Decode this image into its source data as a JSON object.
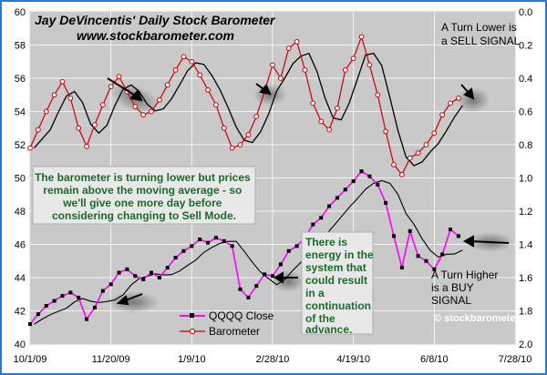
{
  "chart_data": {
    "type": "line",
    "title": "Jay DeVincentis' Daily Stock Barometer",
    "subtitle": "www.stockbarometer.com",
    "watermark": "© stockbarometer.com",
    "x_labels": [
      "10/1/09",
      "11/20/09",
      "1/9/10",
      "2/28/10",
      "4/19/10",
      "6/8/10",
      "7/28/10"
    ],
    "left_axis": {
      "ylim": [
        40,
        60
      ],
      "ticks": [
        "40",
        "42",
        "44",
        "46",
        "48",
        "50",
        "52",
        "54",
        "56",
        "58",
        "60"
      ]
    },
    "right_axis": {
      "ylim": [
        2.0,
        0.0
      ],
      "ticks": [
        "2.0",
        "1.8",
        "1.6",
        "1.4",
        "1.2",
        "1.0",
        "0.8",
        "0.6",
        "0.4",
        "0.2",
        "0.0"
      ]
    },
    "series": [
      {
        "name": "QQQQ Close",
        "color": "#ff00ff",
        "axis": "left",
        "values": [
          [
            0,
            41.2
          ],
          [
            2,
            41.8
          ],
          [
            4,
            42.3
          ],
          [
            6,
            42.6
          ],
          [
            8,
            42.9
          ],
          [
            10,
            43.1
          ],
          [
            12,
            42.8
          ],
          [
            14,
            41.5
          ],
          [
            16,
            42.2
          ],
          [
            18,
            43.2
          ],
          [
            20,
            43.6
          ],
          [
            22,
            44.3
          ],
          [
            24,
            44.5
          ],
          [
            26,
            44.1
          ],
          [
            28,
            43.9
          ],
          [
            30,
            44.3
          ],
          [
            32,
            44.0
          ],
          [
            34,
            44.6
          ],
          [
            36,
            45.2
          ],
          [
            38,
            45.6
          ],
          [
            40,
            45.9
          ],
          [
            42,
            46.3
          ],
          [
            44,
            46.1
          ],
          [
            46,
            46.4
          ],
          [
            48,
            46.2
          ],
          [
            50,
            45.9
          ],
          [
            52,
            43.3
          ],
          [
            54,
            42.8
          ],
          [
            56,
            43.5
          ],
          [
            58,
            44.2
          ],
          [
            60,
            44.1
          ],
          [
            62,
            44.8
          ],
          [
            64,
            45.6
          ],
          [
            66,
            45.9
          ],
          [
            68,
            46.4
          ],
          [
            70,
            47.2
          ],
          [
            72,
            47.6
          ],
          [
            74,
            48.3
          ],
          [
            76,
            48.8
          ],
          [
            78,
            49.3
          ],
          [
            80,
            49.8
          ],
          [
            82,
            50.4
          ],
          [
            84,
            50.1
          ],
          [
            86,
            49.6
          ],
          [
            88,
            48.5
          ],
          [
            90,
            46.5
          ],
          [
            92,
            44.6
          ],
          [
            94,
            46.8
          ],
          [
            96,
            45.3
          ],
          [
            98,
            45.0
          ],
          [
            100,
            44.5
          ],
          [
            102,
            45.4
          ],
          [
            104,
            46.9
          ],
          [
            106,
            46.5
          ]
        ]
      },
      {
        "name": "Barometer",
        "color": "#cc0000",
        "axis": "right",
        "values": [
          [
            0,
            0.82
          ],
          [
            2,
            0.71
          ],
          [
            4,
            0.6
          ],
          [
            6,
            0.5
          ],
          [
            8,
            0.42
          ],
          [
            10,
            0.52
          ],
          [
            12,
            0.7
          ],
          [
            14,
            0.81
          ],
          [
            16,
            0.68
          ],
          [
            18,
            0.56
          ],
          [
            20,
            0.45
          ],
          [
            22,
            0.39
          ],
          [
            24,
            0.48
          ],
          [
            26,
            0.57
          ],
          [
            28,
            0.62
          ],
          [
            30,
            0.6
          ],
          [
            32,
            0.53
          ],
          [
            34,
            0.44
          ],
          [
            36,
            0.35
          ],
          [
            38,
            0.27
          ],
          [
            40,
            0.3
          ],
          [
            42,
            0.38
          ],
          [
            44,
            0.47
          ],
          [
            46,
            0.56
          ],
          [
            48,
            0.7
          ],
          [
            50,
            0.82
          ],
          [
            52,
            0.8
          ],
          [
            54,
            0.74
          ],
          [
            56,
            0.63
          ],
          [
            58,
            0.48
          ],
          [
            60,
            0.32
          ],
          [
            62,
            0.4
          ],
          [
            64,
            0.22
          ],
          [
            66,
            0.18
          ],
          [
            68,
            0.35
          ],
          [
            70,
            0.55
          ],
          [
            72,
            0.66
          ],
          [
            74,
            0.71
          ],
          [
            76,
            0.58
          ],
          [
            78,
            0.35
          ],
          [
            80,
            0.28
          ],
          [
            82,
            0.15
          ],
          [
            84,
            0.32
          ],
          [
            86,
            0.5
          ],
          [
            88,
            0.72
          ],
          [
            90,
            0.92
          ],
          [
            92,
            0.98
          ],
          [
            94,
            0.88
          ],
          [
            96,
            0.85
          ],
          [
            98,
            0.8
          ],
          [
            100,
            0.73
          ],
          [
            102,
            0.62
          ],
          [
            104,
            0.55
          ],
          [
            106,
            0.52
          ]
        ]
      }
    ],
    "annotations": {
      "sell_signal": [
        "A Turn Lower is",
        "a SELL SIGNAL"
      ],
      "buy_signal": [
        "A Turn Higher",
        "is a BUY",
        "SIGNAL"
      ],
      "commentary": [
        "The barometer is turning lower but prices",
        "remain above the moving average - so",
        "we'll give one more day before",
        "considering changing to Sell Mode."
      ],
      "energy_note": [
        "There is",
        "energy in the",
        "system that",
        "could result",
        "in a",
        "continuation",
        "of the",
        "advance."
      ]
    }
  }
}
